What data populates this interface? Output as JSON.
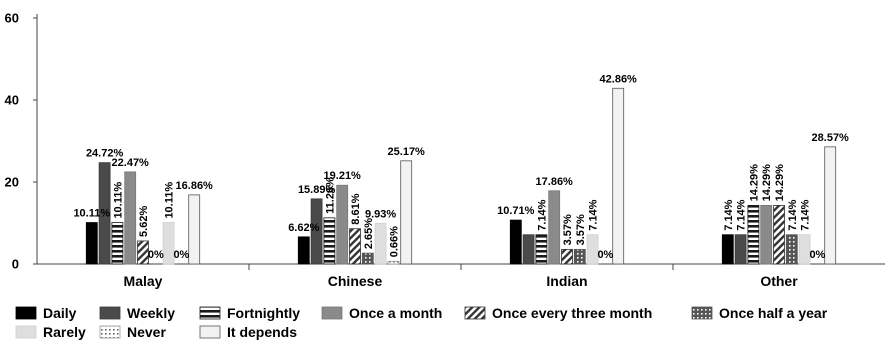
{
  "chart_data": {
    "type": "bar",
    "categories": [
      "Malay",
      "Chinese",
      "Indian",
      "Other"
    ],
    "ylim": [
      0,
      60
    ],
    "yticks": [
      0,
      20,
      40,
      60
    ],
    "grid": false,
    "legend_position": "bottom",
    "series": [
      {
        "name": "Daily",
        "values": [
          10.11,
          6.62,
          10.71,
          7.14
        ],
        "labels": [
          "10.11%",
          "6.62%",
          "10.71%",
          "7.14%"
        ]
      },
      {
        "name": "Weekly",
        "values": [
          24.72,
          15.89,
          7.14,
          7.14
        ],
        "labels": [
          "24.72%",
          "15.89%",
          "",
          "7.14%"
        ]
      },
      {
        "name": "Fortnightly",
        "values": [
          10.11,
          11.26,
          7.14,
          14.29
        ],
        "labels": [
          "10.11%",
          "11.26%",
          "7.14%",
          "14.29%"
        ]
      },
      {
        "name": "Once a month",
        "values": [
          22.47,
          19.21,
          17.86,
          14.29
        ],
        "labels": [
          "22.47%",
          "19.21%",
          "17.86%",
          "14.29%"
        ]
      },
      {
        "name": "Once every three month",
        "values": [
          5.62,
          8.61,
          3.57,
          14.29
        ],
        "labels": [
          "5.62%",
          "8.61%",
          "3.57%",
          "14.29%"
        ]
      },
      {
        "name": "Once half a year",
        "values": [
          0,
          2.65,
          3.57,
          7.14
        ],
        "labels": [
          "0%",
          "2.65%",
          "3.57%",
          "7.14%"
        ]
      },
      {
        "name": "Rarely",
        "values": [
          10.11,
          9.93,
          7.14,
          7.14
        ],
        "labels": [
          "10.11%",
          "9.93%",
          "7.14%",
          "7.14%"
        ]
      },
      {
        "name": "Never",
        "values": [
          0,
          0.66,
          0,
          0
        ],
        "labels": [
          "0%",
          "0.66%",
          "0%",
          "0%"
        ]
      },
      {
        "name": "It depends",
        "values": [
          16.86,
          25.17,
          42.86,
          28.57
        ],
        "labels": [
          "16.86%",
          "25.17%",
          "42.86%",
          "28.57%"
        ]
      }
    ]
  }
}
